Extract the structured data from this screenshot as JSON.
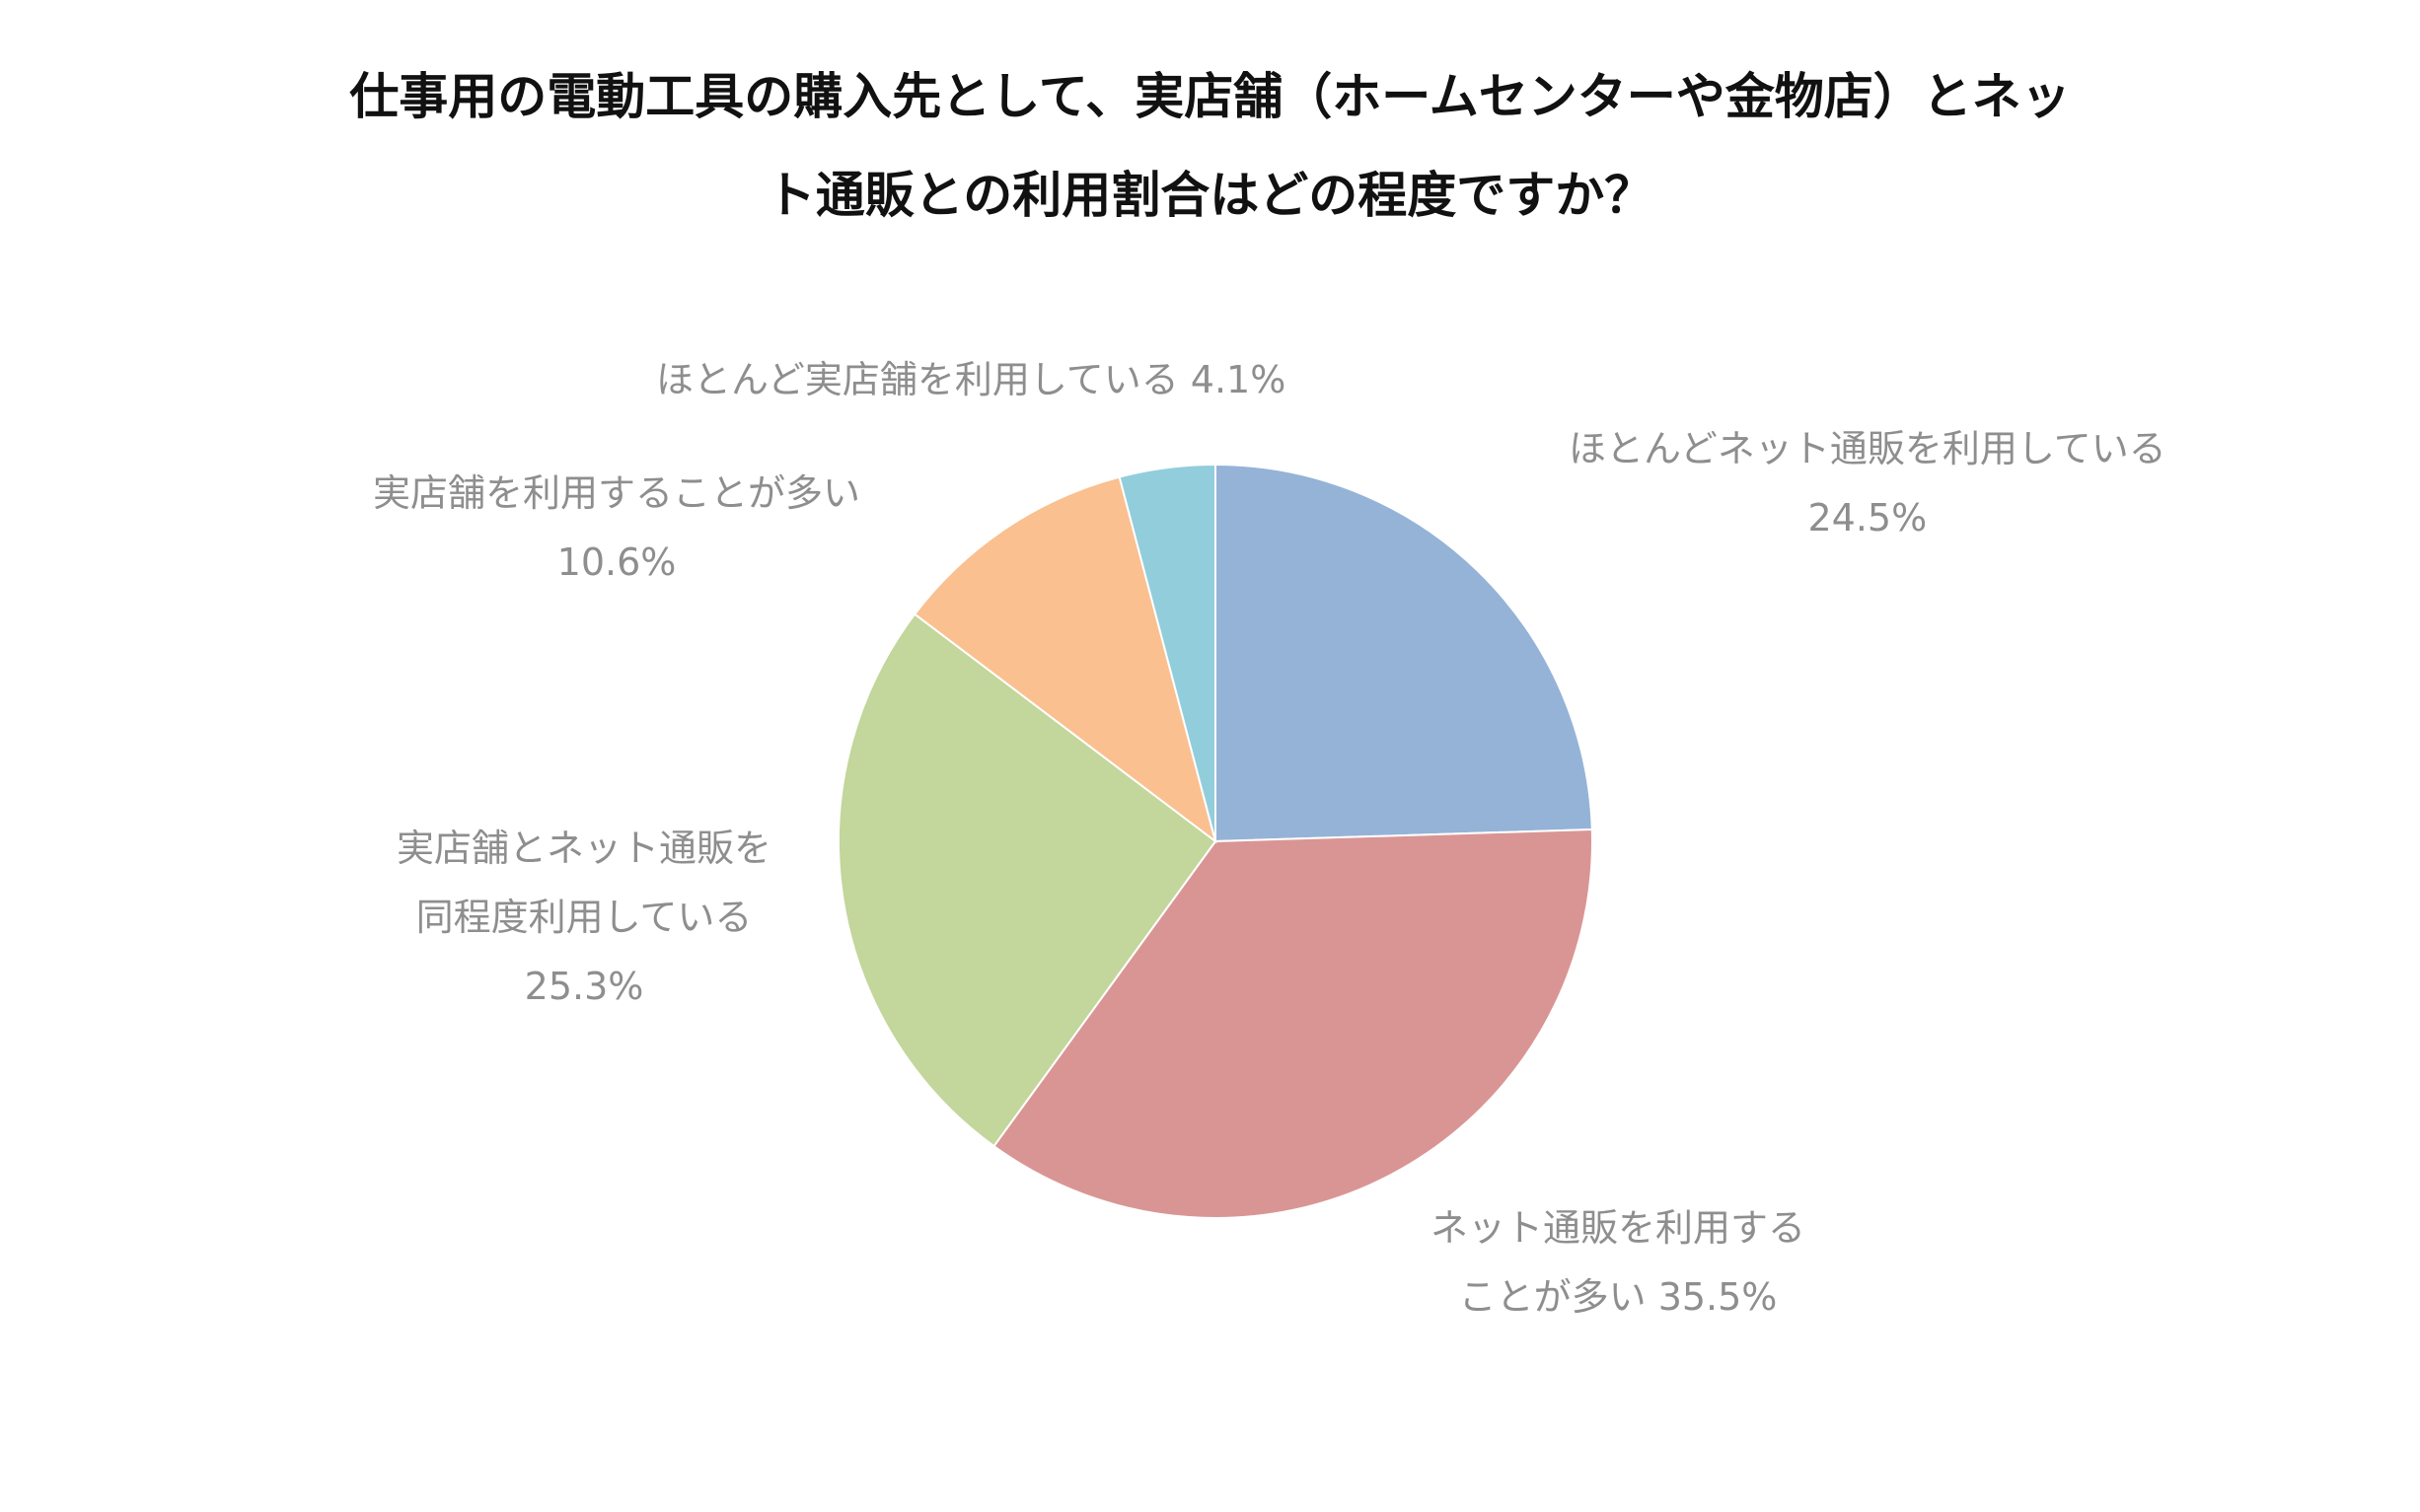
{
  "chart_data": {
    "type": "pie",
    "title_lines": [
      "仕事用の電動工具の購入先として、実店舗（ホームセンターや金物店）とネッ",
      "ト通販との利用割合はどの程度ですか？"
    ],
    "slices": [
      {
        "label_lines": [
          "ほとんどネット通販を利用している",
          "24.5%"
        ],
        "value": 24.5,
        "color": "#95b3d7"
      },
      {
        "label_lines": [
          "ネット通販を利用する",
          "ことが多い 35.5%"
        ],
        "value": 35.5,
        "color": "#d99594"
      },
      {
        "label_lines": [
          "実店舗とネット通販を",
          "同程度利用している",
          "25.3%"
        ],
        "value": 25.3,
        "color": "#c3d69b"
      },
      {
        "label_lines": [
          "実店舗を利用することが多い",
          "10.6%"
        ],
        "value": 10.6,
        "color": "#fac090"
      },
      {
        "label_lines": [
          "ほとんど実店舗を利用している 4.1%"
        ],
        "value": 4.1,
        "color": "#92cddc"
      }
    ],
    "start": "12 o'clock",
    "direction": "clockwise",
    "legend": "none"
  }
}
